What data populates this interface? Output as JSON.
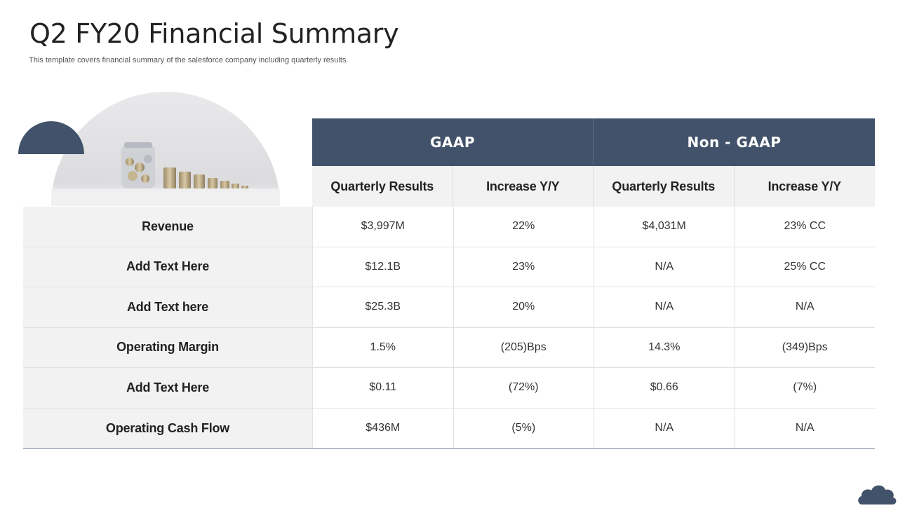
{
  "slide": {
    "title": "Q2 FY20 Financial Summary",
    "subtitle": "This template covers financial summary of the salesforce company including quarterly results."
  },
  "colors": {
    "accent": "#42526a",
    "row_bg": "#f2f2f2",
    "rule": "#8591a6"
  },
  "icons": {
    "decor_left": "semicircle-shape",
    "decor_bottom_right": "cloud-icon",
    "photo": "coin-jar-photo"
  },
  "table": {
    "groups": [
      {
        "label": "GAAP"
      },
      {
        "label": "Non - GAAP"
      }
    ],
    "subheaders": [
      "Quarterly Results",
      "Increase Y/Y",
      "Quarterly Results",
      "Increase Y/Y"
    ],
    "rows": [
      {
        "label": "Revenue",
        "cells": [
          "$3,997M",
          "22%",
          "$4,031M",
          "23% CC"
        ]
      },
      {
        "label": "Add Text Here",
        "cells": [
          "$12.1B",
          "23%",
          "N/A",
          "25% CC"
        ]
      },
      {
        "label": "Add Text here",
        "cells": [
          "$25.3B",
          "20%",
          "N/A",
          "N/A"
        ]
      },
      {
        "label": "Operating Margin",
        "cells": [
          "1.5%",
          "(205)Bps",
          "14.3%",
          "(349)Bps"
        ]
      },
      {
        "label": "Add Text Here",
        "cells": [
          "$0.11",
          "(72%)",
          "$0.66",
          "(7%)"
        ]
      },
      {
        "label": "Operating Cash Flow",
        "cells": [
          "$436M",
          "(5%)",
          "N/A",
          "N/A"
        ]
      }
    ]
  }
}
